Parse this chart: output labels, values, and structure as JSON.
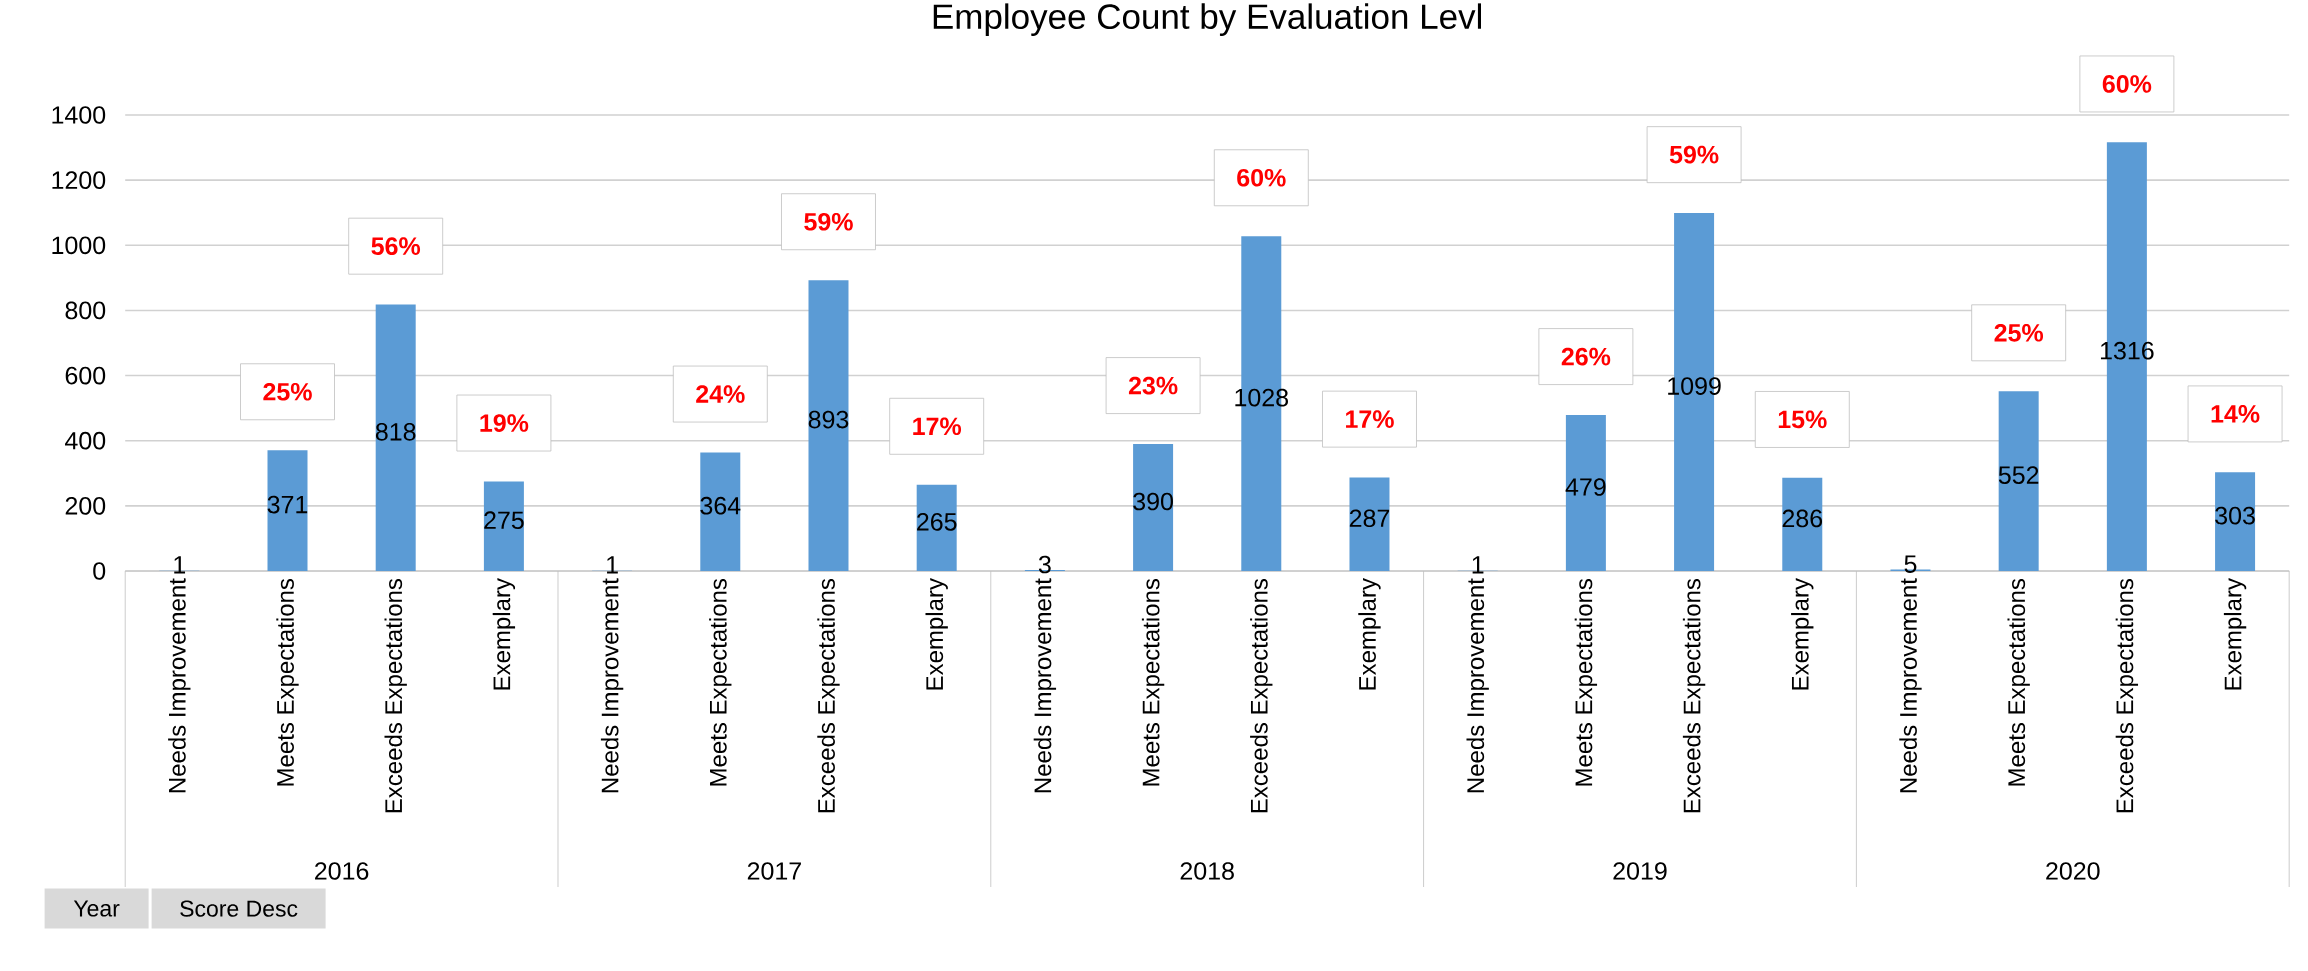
{
  "chart_data": {
    "type": "bar",
    "title": "Employee Count by Evaluation Levl",
    "categories": [
      "Needs Improvement",
      "Meets Expectations",
      "Exceeds Expectations",
      "Exemplary",
      "Needs Improvement",
      "Meets Expectations",
      "Exceeds Expectations",
      "Exemplary",
      "Needs Improvement",
      "Meets Expectations",
      "Exceeds Expectations",
      "Exemplary",
      "Needs Improvement",
      "Meets Expectations",
      "Exceeds Expectations",
      "Exemplary",
      "Needs Improvement",
      "Meets Expectations",
      "Exceeds Expectations",
      "Exemplary"
    ],
    "values": [
      1,
      371,
      818,
      275,
      1,
      364,
      893,
      265,
      3,
      390,
      1028,
      287,
      1,
      479,
      1099,
      286,
      5,
      552,
      1316,
      303
    ],
    "data_labels": true,
    "color": "#5b9bd5",
    "ylim": [
      0,
      1400
    ],
    "yticks": [
      0,
      200,
      400,
      600,
      800,
      1000,
      1200,
      1400
    ],
    "grid": "y",
    "annotations": [
      "2016",
      "2017",
      "2018",
      "2019",
      "2020",
      "Year",
      "Score Desc",
      "25%",
      "56%",
      "19%",
      "24%",
      "59%",
      "17%",
      "23%",
      "60%",
      "17%",
      "26%",
      "59%",
      "15%",
      "25%",
      "60%",
      "14%"
    ]
  }
}
